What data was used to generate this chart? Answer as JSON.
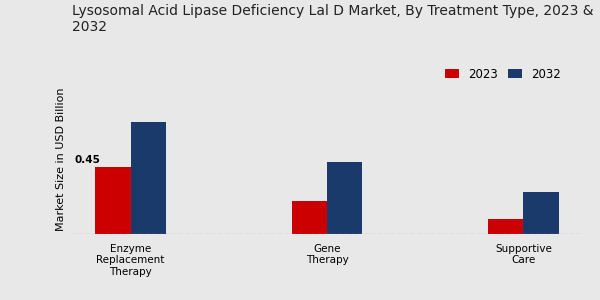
{
  "title": "Lysosomal Acid Lipase Deficiency Lal D Market, By Treatment Type, 2023 &\n2032",
  "categories": [
    "Enzyme\nReplacement\nTherapy",
    "Gene\nTherapy",
    "Supportive\nCare"
  ],
  "values_2023": [
    0.45,
    0.22,
    0.1
  ],
  "values_2032": [
    0.75,
    0.48,
    0.28
  ],
  "color_2023": "#cc0000",
  "color_2032": "#1a3a6b",
  "ylabel": "Market Size in USD Billion",
  "legend_2023": "2023",
  "legend_2032": "2032",
  "annotation_text": "0.45",
  "annotation_category_idx": 0,
  "bar_width": 0.18,
  "ylim": [
    0,
    1.0
  ],
  "background_color": "#e8e8e8",
  "title_fontsize": 10,
  "label_fontsize": 7.5,
  "ylabel_fontsize": 8
}
